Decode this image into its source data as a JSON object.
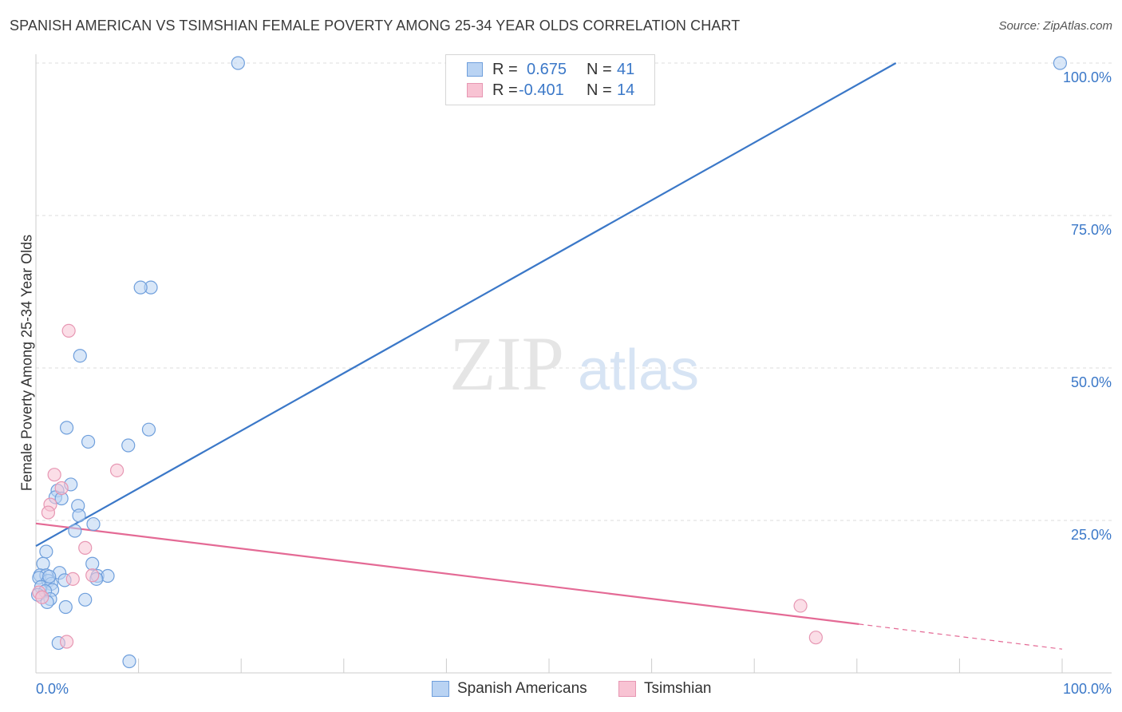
{
  "header": {
    "title": "SPANISH AMERICAN VS TSIMSHIAN FEMALE POVERTY AMONG 25-34 YEAR OLDS CORRELATION CHART",
    "source": "Source: ZipAtlas.com"
  },
  "legend": {
    "rows": [
      {
        "r_label": "R =",
        "r_value": "0.675",
        "n_label": "N =",
        "n_value": "41"
      },
      {
        "r_label": "R =",
        "r_value": "-0.401",
        "n_label": "N =",
        "n_value": "14"
      }
    ]
  },
  "bottom_legend": {
    "items": [
      {
        "label": "Spanish Americans"
      },
      {
        "label": "Tsimshian"
      }
    ]
  },
  "watermark": {
    "zip": "ZIP",
    "atlas": "atlas"
  },
  "colors": {
    "blue": "#3b78c8",
    "blue_fill": "#b9d3f3",
    "blue_stroke": "#6f9fdc",
    "pink": "#e46a95",
    "pink_fill": "#f8c3d3",
    "pink_stroke": "#e797b3",
    "grid": "#dddddd",
    "axis_label": "#3b78c8"
  },
  "chart_data": {
    "type": "scatter",
    "title": "SPANISH AMERICAN VS TSIMSHIAN FEMALE POVERTY AMONG 25-34 YEAR OLDS CORRELATION CHART",
    "xlabel": "",
    "ylabel": "Female Poverty Among 25-34 Year Olds",
    "xlim": [
      0,
      100
    ],
    "ylim": [
      0,
      100
    ],
    "x_tick_labels": [
      "0.0%",
      "100.0%"
    ],
    "y_tick_labels": [
      {
        "value": 25,
        "label": "25.0%"
      },
      {
        "value": 50,
        "label": "50.0%"
      },
      {
        "value": 75,
        "label": "75.0%"
      },
      {
        "value": 100,
        "label": "100.0%"
      }
    ],
    "grid": true,
    "legend_position": "top-center",
    "series": [
      {
        "name": "Spanish Americans",
        "color": "#3b78c8",
        "points": [
          [
            19.7,
            100.0
          ],
          [
            99.8,
            100.0
          ],
          [
            11.2,
            63.2
          ],
          [
            10.2,
            63.2
          ],
          [
            4.3,
            52.0
          ],
          [
            3.0,
            40.2
          ],
          [
            11.0,
            39.9
          ],
          [
            5.1,
            37.9
          ],
          [
            9.0,
            37.3
          ],
          [
            3.4,
            30.9
          ],
          [
            2.1,
            29.9
          ],
          [
            1.9,
            28.8
          ],
          [
            2.5,
            28.6
          ],
          [
            4.1,
            27.4
          ],
          [
            4.2,
            25.8
          ],
          [
            5.6,
            24.4
          ],
          [
            3.8,
            23.3
          ],
          [
            1.0,
            19.9
          ],
          [
            0.7,
            17.9
          ],
          [
            5.5,
            17.9
          ],
          [
            0.4,
            16.0
          ],
          [
            1.0,
            16.0
          ],
          [
            0.3,
            15.6
          ],
          [
            6.0,
            15.9
          ],
          [
            7.0,
            15.9
          ],
          [
            5.9,
            15.4
          ],
          [
            2.3,
            16.4
          ],
          [
            2.8,
            15.2
          ],
          [
            1.2,
            15.1
          ],
          [
            0.5,
            14.1
          ],
          [
            1.5,
            14.6
          ],
          [
            1.6,
            13.6
          ],
          [
            0.9,
            13.4
          ],
          [
            0.2,
            12.8
          ],
          [
            1.4,
            12.1
          ],
          [
            4.8,
            12.0
          ],
          [
            1.1,
            11.6
          ],
          [
            2.9,
            10.8
          ],
          [
            2.2,
            4.9
          ],
          [
            9.1,
            1.9
          ],
          [
            1.3,
            15.8
          ]
        ]
      },
      {
        "name": "Tsimshian",
        "color": "#e46a95",
        "points": [
          [
            3.2,
            56.1
          ],
          [
            7.9,
            33.2
          ],
          [
            1.8,
            32.5
          ],
          [
            2.5,
            30.3
          ],
          [
            1.4,
            27.6
          ],
          [
            1.2,
            26.3
          ],
          [
            4.8,
            20.5
          ],
          [
            3.6,
            15.4
          ],
          [
            5.5,
            16.0
          ],
          [
            0.3,
            13.2
          ],
          [
            0.6,
            12.4
          ],
          [
            74.5,
            11.0
          ],
          [
            76.0,
            5.8
          ],
          [
            3.0,
            5.1
          ]
        ]
      }
    ],
    "trend_lines": [
      {
        "series": "Spanish Americans",
        "x": [
          0,
          83.8
        ],
        "y": [
          20.8,
          100.0
        ],
        "style": "solid"
      },
      {
        "series": "Tsimshian",
        "x": [
          0,
          80.2
        ],
        "y": [
          24.5,
          8.0
        ],
        "style": "solid"
      },
      {
        "series": "Tsimshian",
        "x": [
          80.2,
          100
        ],
        "y": [
          8.0,
          3.9
        ],
        "style": "dashed"
      }
    ]
  }
}
